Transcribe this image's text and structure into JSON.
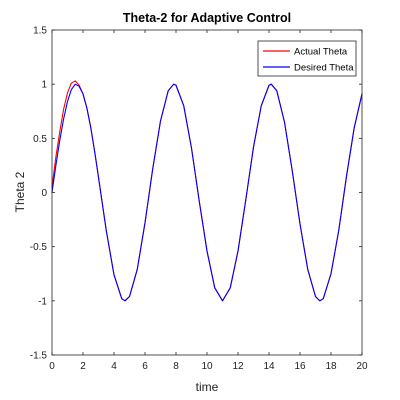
{
  "chart_data": {
    "type": "line",
    "title": "Theta-2 for Adaptive Control",
    "xlabel": "time",
    "ylabel": "Theta 2",
    "xlim": [
      0,
      20
    ],
    "ylim": [
      -1.5,
      1.5
    ],
    "xticks": [
      0,
      2,
      4,
      6,
      8,
      10,
      12,
      14,
      16,
      18,
      20
    ],
    "xtick_labels": [
      "0",
      "2",
      "4",
      "6",
      "8",
      "10",
      "12",
      "14",
      "16",
      "18",
      "20"
    ],
    "yticks": [
      -1.5,
      -1,
      -0.5,
      0,
      0.5,
      1,
      1.5
    ],
    "ytick_labels": [
      "-1.5",
      "-1",
      "-0.5",
      "0",
      "0.5",
      "1",
      "1.5"
    ],
    "grid": false,
    "legend_position": "top-right",
    "series": [
      {
        "name": "Actual Theta",
        "color": "#ff0000",
        "x": [
          0,
          0.25,
          0.5,
          0.75,
          1.0,
          1.25,
          1.5,
          1.75,
          2.0,
          2.25,
          2.5,
          2.75,
          3.0,
          3.5,
          4.0,
          4.5,
          4.71,
          5.0,
          5.5,
          6.0,
          6.5,
          7.0,
          7.5,
          7.85,
          8.0,
          8.5,
          9.0,
          9.5,
          10.0,
          10.5,
          11.0,
          11.5,
          12.0,
          12.5,
          13.0,
          13.5,
          14.0,
          14.14,
          14.5,
          15.0,
          15.5,
          16.0,
          16.5,
          17.0,
          17.28,
          17.5,
          18.0,
          18.5,
          19.0,
          19.5,
          20.0
        ],
        "y": [
          0.05,
          0.33,
          0.56,
          0.77,
          0.92,
          1.01,
          1.03,
          0.99,
          0.91,
          0.78,
          0.6,
          0.38,
          0.14,
          -0.35,
          -0.76,
          -0.98,
          -1.0,
          -0.96,
          -0.71,
          -0.28,
          0.22,
          0.66,
          0.94,
          1.0,
          0.99,
          0.8,
          0.41,
          -0.08,
          -0.54,
          -0.88,
          -1.0,
          -0.88,
          -0.54,
          -0.07,
          0.42,
          0.8,
          0.99,
          1.0,
          0.94,
          0.65,
          0.2,
          -0.29,
          -0.71,
          -0.96,
          -1.0,
          -0.98,
          -0.75,
          -0.35,
          0.15,
          0.6,
          0.91
        ]
      },
      {
        "name": "Desired Theta",
        "color": "#0000ff",
        "x": [
          0,
          0.25,
          0.5,
          0.75,
          1.0,
          1.25,
          1.5,
          1.75,
          2.0,
          2.25,
          2.5,
          2.75,
          3.0,
          3.5,
          4.0,
          4.5,
          4.71,
          5.0,
          5.5,
          6.0,
          6.5,
          7.0,
          7.5,
          7.85,
          8.0,
          8.5,
          9.0,
          9.5,
          10.0,
          10.5,
          11.0,
          11.5,
          12.0,
          12.5,
          13.0,
          13.5,
          14.0,
          14.14,
          14.5,
          15.0,
          15.5,
          16.0,
          16.5,
          17.0,
          17.28,
          17.5,
          18.0,
          18.5,
          19.0,
          19.5,
          20.0
        ],
        "y": [
          0,
          0.25,
          0.48,
          0.68,
          0.84,
          0.95,
          1.0,
          0.98,
          0.91,
          0.78,
          0.6,
          0.38,
          0.14,
          -0.35,
          -0.76,
          -0.98,
          -1.0,
          -0.96,
          -0.71,
          -0.28,
          0.22,
          0.66,
          0.94,
          1.0,
          0.99,
          0.8,
          0.41,
          -0.08,
          -0.54,
          -0.88,
          -1.0,
          -0.88,
          -0.54,
          -0.07,
          0.42,
          0.8,
          0.99,
          1.0,
          0.94,
          0.65,
          0.2,
          -0.29,
          -0.71,
          -0.96,
          -1.0,
          -0.98,
          -0.75,
          -0.35,
          0.15,
          0.6,
          0.91
        ]
      }
    ]
  }
}
